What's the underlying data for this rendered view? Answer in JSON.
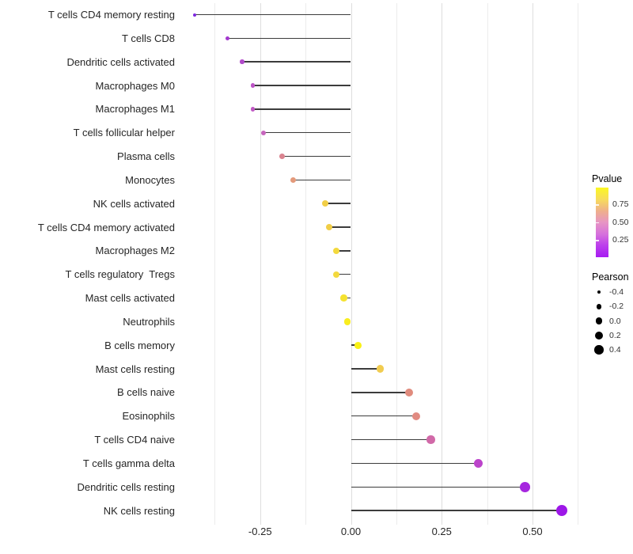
{
  "chart_data": {
    "type": "scatter",
    "variant": "lollipop",
    "orientation": "horizontal",
    "title": "",
    "xlabel": "",
    "ylabel": "",
    "xlim": [
      -0.47,
      0.65
    ],
    "baseline": 0,
    "grid": "vertical-light-on-white",
    "legend_position": "right",
    "x_axis": {
      "major_ticks": [
        {
          "value": -0.25,
          "label": "-0.25"
        },
        {
          "value": 0.0,
          "label": "0.00"
        },
        {
          "value": 0.25,
          "label": "0.25"
        },
        {
          "value": 0.5,
          "label": "0.50"
        }
      ],
      "minor_ticks": [
        -0.375,
        -0.125,
        0.125,
        0.375,
        0.625
      ]
    },
    "points": [
      {
        "label": "T cells CD4 memory resting",
        "pearson": -0.43,
        "color": "#7E28DF"
      },
      {
        "label": "T cells CD8",
        "pearson": -0.34,
        "color": "#A338CF"
      },
      {
        "label": "Dendritic cells activated",
        "pearson": -0.3,
        "color": "#B14ACA"
      },
      {
        "label": "Macrophages M0",
        "pearson": -0.27,
        "color": "#BD54C6"
      },
      {
        "label": "Macrophages M1",
        "pearson": -0.27,
        "color": "#C059C4"
      },
      {
        "label": "T cells follicular helper",
        "pearson": -0.24,
        "color": "#C766BD"
      },
      {
        "label": "Plasma cells",
        "pearson": -0.19,
        "color": "#DA8490"
      },
      {
        "label": "Monocytes",
        "pearson": -0.16,
        "color": "#E49A7B"
      },
      {
        "label": "NK cells activated",
        "pearson": -0.07,
        "color": "#F1CE47"
      },
      {
        "label": "T cells CD4 memory activated",
        "pearson": -0.06,
        "color": "#F1CE47"
      },
      {
        "label": "Macrophages M2",
        "pearson": -0.04,
        "color": "#F3D93E"
      },
      {
        "label": "T cells regulatory  Tregs",
        "pearson": -0.04,
        "color": "#F3D93E"
      },
      {
        "label": "Mast cells activated",
        "pearson": -0.02,
        "color": "#F5E230"
      },
      {
        "label": "Neutrophils",
        "pearson": -0.01,
        "color": "#F9ED1F"
      },
      {
        "label": "B cells memory",
        "pearson": 0.02,
        "color": "#F9F115"
      },
      {
        "label": "Mast cells resting",
        "pearson": 0.08,
        "color": "#F1CC50"
      },
      {
        "label": "B cells naive",
        "pearson": 0.16,
        "color": "#E08B7D"
      },
      {
        "label": "Eosinophils",
        "pearson": 0.18,
        "color": "#E18B82"
      },
      {
        "label": "T cells CD4 naive",
        "pearson": 0.22,
        "color": "#D169A8"
      },
      {
        "label": "T cells gamma delta",
        "pearson": 0.35,
        "color": "#BC44CB"
      },
      {
        "label": "Dendritic cells resting",
        "pearson": 0.48,
        "color": "#A626DF"
      },
      {
        "label": "NK cells resting",
        "pearson": 0.58,
        "color": "#9D17E8"
      }
    ],
    "legends": {
      "color": {
        "title": "Pvalue",
        "tick_labels": [
          "0.75",
          "0.50",
          "0.25"
        ],
        "gradient_stops": [
          "#FBF722",
          "#F7DC5C",
          "#EFB189",
          "#E795C4",
          "#D671DC",
          "#BC3FEC",
          "#A71BF2"
        ]
      },
      "size": {
        "title": "Pearson",
        "items": [
          {
            "label": "-0.4",
            "value": -0.4
          },
          {
            "label": "-0.2",
            "value": -0.2
          },
          {
            "label": "0.0",
            "value": 0.0
          },
          {
            "label": "0.2",
            "value": 0.2
          },
          {
            "label": "0.4",
            "value": 0.4
          }
        ]
      }
    },
    "colors": {
      "stem": "#3C3C3C",
      "grid_major": "#DEDEDE",
      "grid_minor": "#ECECEC",
      "axis_text": "#262626",
      "legend_dot": "#000000"
    }
  }
}
